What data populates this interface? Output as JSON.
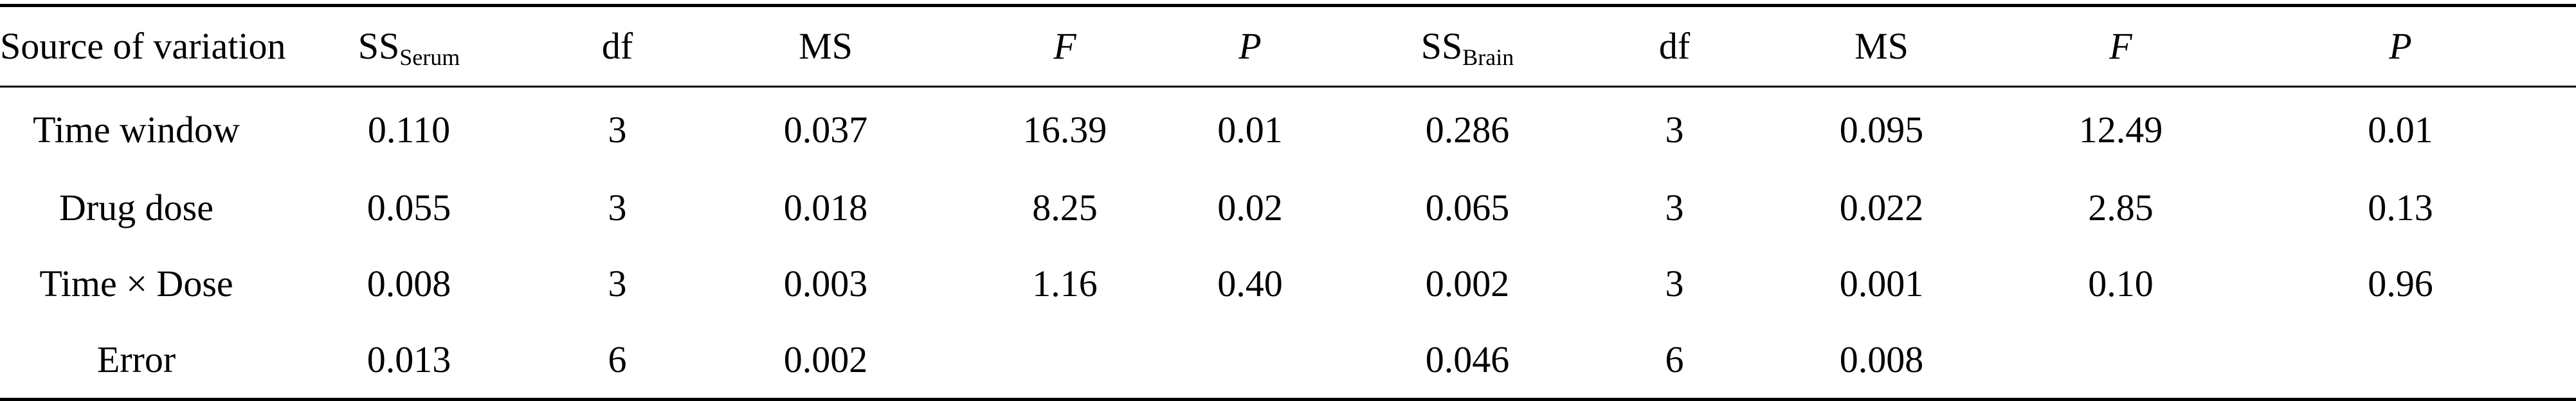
{
  "table": {
    "header": {
      "source": "Source of variation",
      "ss_serum_main": "SS",
      "ss_serum_sub": "Serum",
      "df_serum": "df",
      "ms_serum": "MS",
      "f_serum": "F",
      "p_serum": "P",
      "ss_brain_main": "SS",
      "ss_brain_sub": "Brain",
      "df_brain": "df",
      "ms_brain": "MS",
      "f_brain": "F",
      "p_brain": "P"
    },
    "rows": [
      {
        "source": "Time window",
        "ss_serum": "0.110",
        "df_serum": "3",
        "ms_serum": "0.037",
        "f_serum": "16.39",
        "p_serum": "0.01",
        "ss_brain": "0.286",
        "df_brain": "3",
        "ms_brain": "0.095",
        "f_brain": "12.49",
        "p_brain": "0.01"
      },
      {
        "source": "Drug dose",
        "ss_serum": "0.055",
        "df_serum": "3",
        "ms_serum": "0.018",
        "f_serum": "8.25",
        "p_serum": "0.02",
        "ss_brain": "0.065",
        "df_brain": "3",
        "ms_brain": "0.022",
        "f_brain": "2.85",
        "p_brain": "0.13"
      },
      {
        "source": "Time × Dose",
        "ss_serum": "0.008",
        "df_serum": "3",
        "ms_serum": "0.003",
        "f_serum": "1.16",
        "p_serum": "0.40",
        "ss_brain": "0.002",
        "df_brain": "3",
        "ms_brain": "0.001",
        "f_brain": "0.10",
        "p_brain": "0.96"
      },
      {
        "source": "Error",
        "ss_serum": "0.013",
        "df_serum": "6",
        "ms_serum": "0.002",
        "f_serum": "",
        "p_serum": "",
        "ss_brain": "0.046",
        "df_brain": "6",
        "ms_brain": "0.008",
        "f_brain": "",
        "p_brain": ""
      }
    ]
  }
}
